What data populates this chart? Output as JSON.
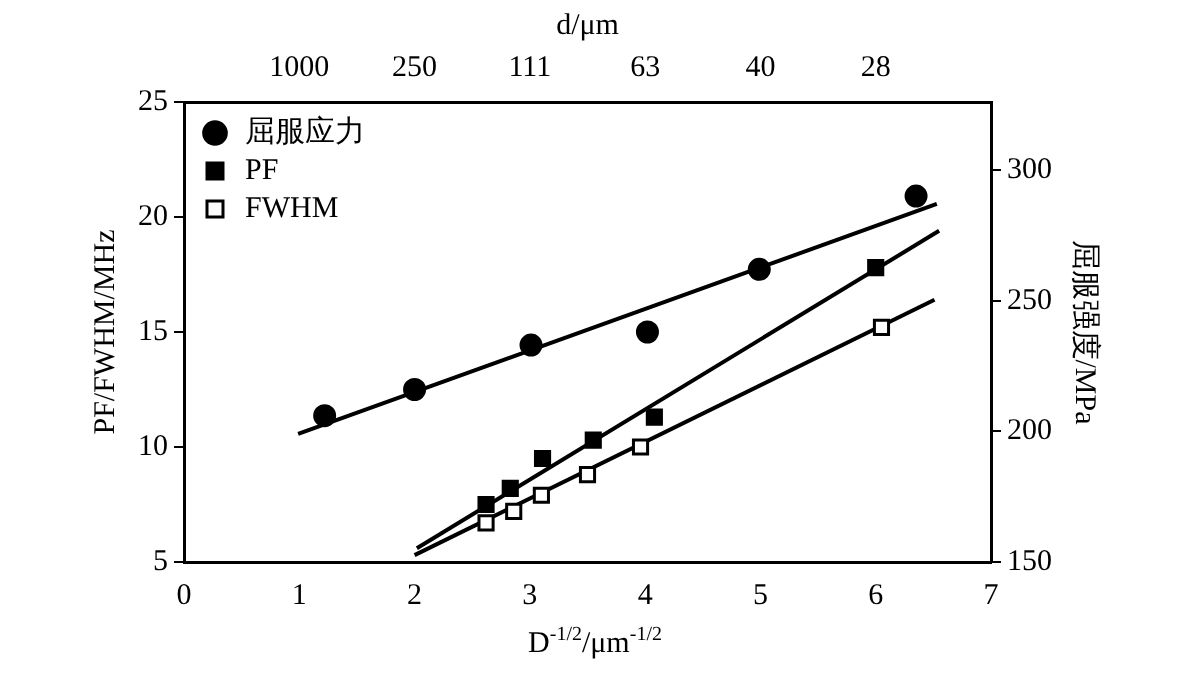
{
  "chart_data": {
    "type": "scatter",
    "xlabel": "D$^{-1/2}$/μm$^{-1/2}$",
    "x2label": "d/μm",
    "ylabel": "PF/FWHM/MHz",
    "y2label": "屈服强度/MPa",
    "xlim": [
      0,
      7
    ],
    "xticks": [
      0,
      1,
      2,
      3,
      4,
      5,
      6,
      7
    ],
    "annotations": [
      "1000",
      "250",
      "111",
      "63",
      "40",
      "28"
    ],
    "ylim": [
      5,
      25
    ],
    "yticks": [
      5,
      10,
      15,
      20,
      25
    ],
    "y2lim": [
      150,
      326
    ],
    "y2ticks": [
      150,
      200,
      250,
      300
    ],
    "legend": "top left",
    "grid": false,
    "series": [
      {
        "name": "屈服应力",
        "color": "#000000",
        "marker": "circle",
        "axis": "y2",
        "x": [
          1.22,
          2.0,
          3.01,
          4.02,
          4.99,
          6.35
        ],
        "values": [
          206,
          216,
          233,
          238,
          262,
          290
        ]
      },
      {
        "name": "PF",
        "color": "#000000",
        "marker": "square",
        "x": [
          2.62,
          2.83,
          3.11,
          3.55,
          4.08,
          6.0
        ],
        "values": [
          7.5,
          8.2,
          9.5,
          10.3,
          11.3,
          17.8
        ]
      },
      {
        "name": "FWHM",
        "color": "#000000",
        "marker": "square-open",
        "x": [
          2.62,
          2.86,
          3.1,
          3.5,
          3.96,
          6.05
        ],
        "values": [
          6.7,
          7.2,
          7.9,
          8.8,
          10.0,
          15.2
        ]
      },
      {
        "type": "line",
        "color": "#000000",
        "marker": "none",
        "axis": "y2",
        "x": [
          0.99,
          6.53
        ],
        "values": [
          199,
          287
        ]
      },
      {
        "type": "line",
        "color": "#000000",
        "marker": "none",
        "x": [
          2.02,
          6.55
        ],
        "values": [
          5.6,
          19.4
        ]
      },
      {
        "type": "line",
        "color": "#000000",
        "marker": "none",
        "x": [
          2.0,
          6.51
        ],
        "values": [
          5.3,
          16.4
        ]
      }
    ]
  }
}
